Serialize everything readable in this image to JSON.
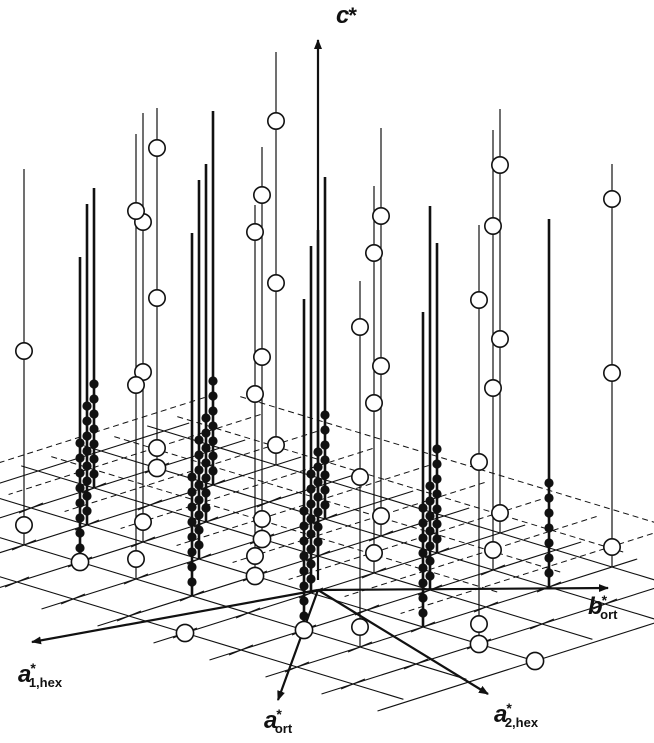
{
  "figure": {
    "axes": [
      {
        "id": "c-star",
        "symbol": "c",
        "superscript": "*",
        "subscript": ""
      },
      {
        "id": "b-star-ort",
        "symbol": "b",
        "superscript": "*",
        "subscript": "ort"
      },
      {
        "id": "a-star-1-hex",
        "symbol": "a",
        "superscript": "*",
        "subscript": "1,hex"
      },
      {
        "id": "a-star-ort",
        "symbol": "a",
        "superscript": "*",
        "subscript": "ort"
      },
      {
        "id": "a-star-2-hex",
        "symbol": "a",
        "superscript": "*",
        "subscript": "2,hex"
      }
    ],
    "colors": {
      "ink": "#111111",
      "open_node_fill": "#ffffff",
      "solid_node_fill": "#111111",
      "background": "#ffffff"
    },
    "marker_legend": {
      "open_circle": "open-node",
      "filled_dot": "filled-node"
    }
  }
}
